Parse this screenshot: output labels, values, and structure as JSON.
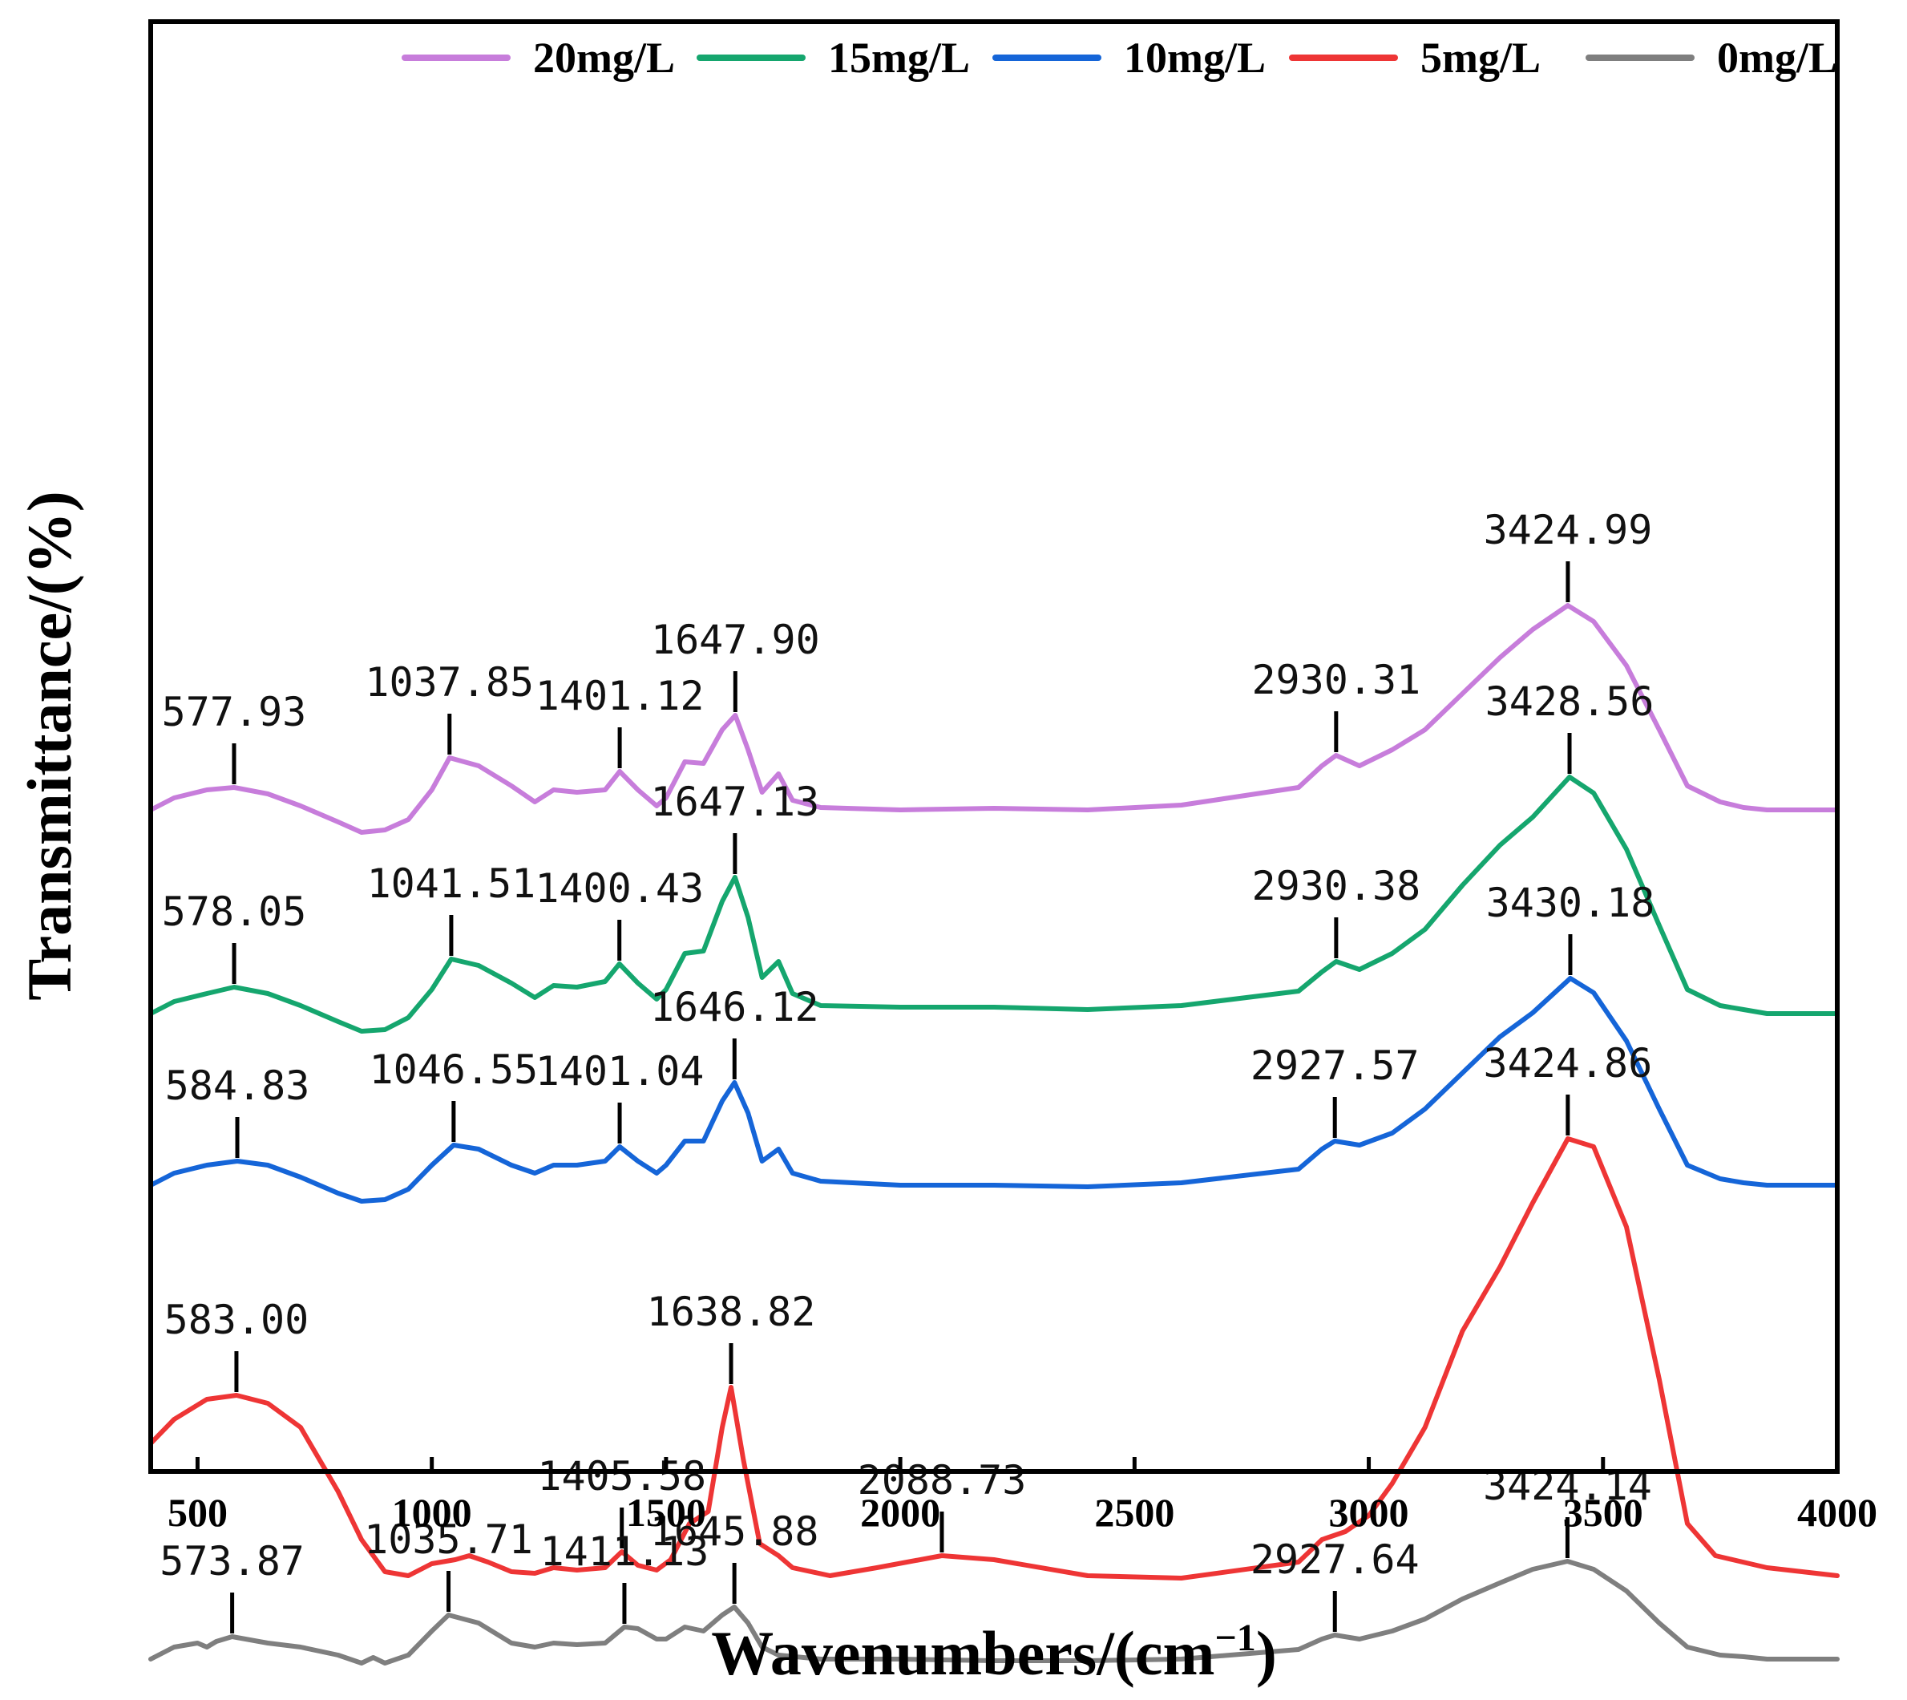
{
  "chart_data": {
    "type": "line",
    "title": "",
    "xlabel": "Wavenumbers/(cm",
    "xlabel_sup": "−1",
    "xlabel_close": ")",
    "ylabel": "Transmittance/(%)",
    "xlim": [
      400,
      4000
    ],
    "xticks": [
      "500",
      "1000",
      "1500",
      "2000",
      "2500",
      "3000",
      "3500",
      "4000"
    ],
    "legend_position": "top",
    "series": [
      {
        "name": "20mg/L",
        "color": "#C77DDB",
        "offset": 1010,
        "points": [
          [
            400,
            0
          ],
          [
            450,
            15
          ],
          [
            520,
            25
          ],
          [
            577.93,
            28
          ],
          [
            650,
            20
          ],
          [
            720,
            5
          ],
          [
            800,
            -15
          ],
          [
            850,
            -28
          ],
          [
            900,
            -25
          ],
          [
            950,
            -12
          ],
          [
            1000,
            25
          ],
          [
            1037.85,
            65
          ],
          [
            1100,
            55
          ],
          [
            1170,
            30
          ],
          [
            1220,
            10
          ],
          [
            1260,
            25
          ],
          [
            1310,
            22
          ],
          [
            1370,
            25
          ],
          [
            1401.12,
            48
          ],
          [
            1440,
            25
          ],
          [
            1480,
            5
          ],
          [
            1500,
            15
          ],
          [
            1540,
            60
          ],
          [
            1580,
            58
          ],
          [
            1620,
            100
          ],
          [
            1647.9,
            118
          ],
          [
            1675,
            75
          ],
          [
            1705,
            22
          ],
          [
            1740,
            45
          ],
          [
            1770,
            12
          ],
          [
            1830,
            3
          ],
          [
            2000,
            0
          ],
          [
            2200,
            2
          ],
          [
            2400,
            0
          ],
          [
            2600,
            6
          ],
          [
            2850,
            28
          ],
          [
            2900,
            55
          ],
          [
            2930.31,
            68
          ],
          [
            2980,
            55
          ],
          [
            3050,
            75
          ],
          [
            3120,
            100
          ],
          [
            3200,
            145
          ],
          [
            3280,
            190
          ],
          [
            3350,
            225
          ],
          [
            3424.99,
            255
          ],
          [
            3480,
            235
          ],
          [
            3550,
            180
          ],
          [
            3620,
            100
          ],
          [
            3680,
            30
          ],
          [
            3750,
            10
          ],
          [
            3800,
            3
          ],
          [
            3850,
            0
          ],
          [
            4000,
            0
          ]
        ]
      },
      {
        "name": "15mg/L",
        "color": "#15A66E",
        "offset": 1264,
        "points": [
          [
            400,
            0
          ],
          [
            450,
            15
          ],
          [
            520,
            25
          ],
          [
            578.05,
            33
          ],
          [
            650,
            25
          ],
          [
            720,
            10
          ],
          [
            800,
            -10
          ],
          [
            850,
            -22
          ],
          [
            900,
            -20
          ],
          [
            950,
            -5
          ],
          [
            1000,
            30
          ],
          [
            1041.51,
            68
          ],
          [
            1100,
            60
          ],
          [
            1170,
            38
          ],
          [
            1220,
            20
          ],
          [
            1260,
            35
          ],
          [
            1310,
            33
          ],
          [
            1370,
            40
          ],
          [
            1400.43,
            62
          ],
          [
            1440,
            38
          ],
          [
            1480,
            18
          ],
          [
            1500,
            30
          ],
          [
            1540,
            75
          ],
          [
            1580,
            78
          ],
          [
            1620,
            140
          ],
          [
            1647.13,
            170
          ],
          [
            1675,
            120
          ],
          [
            1705,
            45
          ],
          [
            1740,
            65
          ],
          [
            1770,
            25
          ],
          [
            1830,
            10
          ],
          [
            2000,
            8
          ],
          [
            2200,
            8
          ],
          [
            2400,
            5
          ],
          [
            2600,
            10
          ],
          [
            2850,
            28
          ],
          [
            2900,
            52
          ],
          [
            2930.38,
            65
          ],
          [
            2980,
            55
          ],
          [
            3050,
            75
          ],
          [
            3120,
            105
          ],
          [
            3200,
            160
          ],
          [
            3280,
            210
          ],
          [
            3350,
            245
          ],
          [
            3428.56,
            295
          ],
          [
            3480,
            275
          ],
          [
            3550,
            205
          ],
          [
            3620,
            110
          ],
          [
            3680,
            30
          ],
          [
            3750,
            10
          ],
          [
            3800,
            5
          ],
          [
            3850,
            0
          ],
          [
            4000,
            0
          ]
        ]
      },
      {
        "name": "10mg/L",
        "color": "#1565D8",
        "offset": 1478,
        "points": [
          [
            400,
            0
          ],
          [
            450,
            15
          ],
          [
            520,
            25
          ],
          [
            584.83,
            30
          ],
          [
            650,
            25
          ],
          [
            720,
            10
          ],
          [
            800,
            -10
          ],
          [
            850,
            -20
          ],
          [
            900,
            -18
          ],
          [
            950,
            -5
          ],
          [
            1000,
            25
          ],
          [
            1046.55,
            50
          ],
          [
            1100,
            45
          ],
          [
            1170,
            25
          ],
          [
            1220,
            15
          ],
          [
            1260,
            25
          ],
          [
            1310,
            25
          ],
          [
            1370,
            30
          ],
          [
            1401.04,
            48
          ],
          [
            1440,
            30
          ],
          [
            1480,
            15
          ],
          [
            1500,
            25
          ],
          [
            1540,
            55
          ],
          [
            1580,
            55
          ],
          [
            1620,
            105
          ],
          [
            1646.12,
            128
          ],
          [
            1675,
            90
          ],
          [
            1705,
            30
          ],
          [
            1740,
            45
          ],
          [
            1770,
            15
          ],
          [
            1830,
            5
          ],
          [
            2000,
            0
          ],
          [
            2200,
            0
          ],
          [
            2400,
            -2
          ],
          [
            2600,
            3
          ],
          [
            2850,
            20
          ],
          [
            2900,
            45
          ],
          [
            2927.57,
            55
          ],
          [
            2980,
            50
          ],
          [
            3050,
            65
          ],
          [
            3120,
            95
          ],
          [
            3200,
            140
          ],
          [
            3280,
            185
          ],
          [
            3350,
            215
          ],
          [
            3430.18,
            258
          ],
          [
            3480,
            240
          ],
          [
            3550,
            180
          ],
          [
            3620,
            95
          ],
          [
            3680,
            25
          ],
          [
            3750,
            8
          ],
          [
            3800,
            3
          ],
          [
            3850,
            0
          ],
          [
            4000,
            0
          ]
        ]
      },
      {
        "name": "5mg/L",
        "color": "#EE3535",
        "offset": 1840,
        "points": [
          [
            400,
            40
          ],
          [
            450,
            70
          ],
          [
            520,
            95
          ],
          [
            583.0,
            100
          ],
          [
            650,
            90
          ],
          [
            720,
            60
          ],
          [
            800,
            -20
          ],
          [
            850,
            -80
          ],
          [
            900,
            -120
          ],
          [
            950,
            -125
          ],
          [
            1000,
            -110
          ],
          [
            1050,
            -105
          ],
          [
            1080,
            -100
          ],
          [
            1120,
            -108
          ],
          [
            1170,
            -120
          ],
          [
            1220,
            -122
          ],
          [
            1260,
            -115
          ],
          [
            1310,
            -118
          ],
          [
            1370,
            -115
          ],
          [
            1405.58,
            -95
          ],
          [
            1440,
            -112
          ],
          [
            1480,
            -118
          ],
          [
            1510,
            -105
          ],
          [
            1550,
            -60
          ],
          [
            1590,
            -45
          ],
          [
            1620,
            60
          ],
          [
            1638.82,
            110
          ],
          [
            1665,
            20
          ],
          [
            1700,
            -85
          ],
          [
            1740,
            -100
          ],
          [
            1770,
            -115
          ],
          [
            1850,
            -125
          ],
          [
            1950,
            -115
          ],
          [
            2088.73,
            -100
          ],
          [
            2200,
            -105
          ],
          [
            2400,
            -125
          ],
          [
            2600,
            -128
          ],
          [
            2850,
            -108
          ],
          [
            2900,
            -80
          ],
          [
            2950,
            -70
          ],
          [
            3000,
            -50
          ],
          [
            3050,
            -10
          ],
          [
            3120,
            60
          ],
          [
            3200,
            180
          ],
          [
            3280,
            260
          ],
          [
            3350,
            340
          ],
          [
            3424.86,
            420
          ],
          [
            3480,
            410
          ],
          [
            3550,
            310
          ],
          [
            3620,
            120
          ],
          [
            3680,
            -60
          ],
          [
            3740,
            -100
          ],
          [
            3850,
            -115
          ],
          [
            4000,
            -125
          ]
        ]
      },
      {
        "name": "0mg/L",
        "color": "#7F7F7F",
        "offset": 2069,
        "points": [
          [
            400,
            0
          ],
          [
            450,
            15
          ],
          [
            500,
            20
          ],
          [
            520,
            15
          ],
          [
            540,
            22
          ],
          [
            573.87,
            28
          ],
          [
            650,
            20
          ],
          [
            720,
            15
          ],
          [
            800,
            5
          ],
          [
            850,
            -5
          ],
          [
            875,
            2
          ],
          [
            900,
            -5
          ],
          [
            950,
            5
          ],
          [
            1000,
            35
          ],
          [
            1035.71,
            55
          ],
          [
            1100,
            45
          ],
          [
            1170,
            20
          ],
          [
            1220,
            15
          ],
          [
            1260,
            20
          ],
          [
            1310,
            18
          ],
          [
            1370,
            20
          ],
          [
            1411.13,
            40
          ],
          [
            1440,
            38
          ],
          [
            1480,
            25
          ],
          [
            1500,
            25
          ],
          [
            1540,
            40
          ],
          [
            1580,
            35
          ],
          [
            1620,
            55
          ],
          [
            1645.88,
            65
          ],
          [
            1675,
            45
          ],
          [
            1705,
            15
          ],
          [
            1740,
            5
          ],
          [
            1830,
            0
          ],
          [
            2000,
            0
          ],
          [
            2200,
            -2
          ],
          [
            2400,
            -2
          ],
          [
            2600,
            0
          ],
          [
            2850,
            12
          ],
          [
            2900,
            25
          ],
          [
            2927.64,
            30
          ],
          [
            2980,
            25
          ],
          [
            3050,
            35
          ],
          [
            3120,
            50
          ],
          [
            3200,
            75
          ],
          [
            3280,
            95
          ],
          [
            3350,
            112
          ],
          [
            3424.14,
            122
          ],
          [
            3480,
            112
          ],
          [
            3550,
            85
          ],
          [
            3620,
            45
          ],
          [
            3680,
            15
          ],
          [
            3750,
            5
          ],
          [
            3800,
            3
          ],
          [
            3850,
            0
          ],
          [
            4000,
            0
          ]
        ]
      }
    ],
    "annotations": [
      {
        "label": "577.93",
        "x": 577.93,
        "series": 0
      },
      {
        "label": "1037.85",
        "x": 1037.85,
        "series": 0
      },
      {
        "label": "1401.12",
        "x": 1401.12,
        "series": 0
      },
      {
        "label": "1647.90",
        "x": 1647.9,
        "series": 0
      },
      {
        "label": "2930.31",
        "x": 2930.31,
        "series": 0
      },
      {
        "label": "3424.99",
        "x": 3424.99,
        "series": 0
      },
      {
        "label": "578.05",
        "x": 578.05,
        "series": 1
      },
      {
        "label": "1041.51",
        "x": 1041.51,
        "series": 1
      },
      {
        "label": "1400.43",
        "x": 1400.43,
        "series": 1
      },
      {
        "label": "1647.13",
        "x": 1647.13,
        "series": 1
      },
      {
        "label": "2930.38",
        "x": 2930.38,
        "series": 1
      },
      {
        "label": "3428.56",
        "x": 3428.56,
        "series": 1
      },
      {
        "label": "584.83",
        "x": 584.83,
        "series": 2
      },
      {
        "label": "1046.55",
        "x": 1046.55,
        "series": 2
      },
      {
        "label": "1401.04",
        "x": 1401.04,
        "series": 2
      },
      {
        "label": "1646.12",
        "x": 1646.12,
        "series": 2
      },
      {
        "label": "2927.57",
        "x": 2927.57,
        "series": 2
      },
      {
        "label": "3430.18",
        "x": 3430.18,
        "series": 2
      },
      {
        "label": "583.00",
        "x": 583.0,
        "series": 3
      },
      {
        "label": "1405.58",
        "x": 1405.58,
        "series": 3
      },
      {
        "label": "1638.82",
        "x": 1638.82,
        "series": 3
      },
      {
        "label": "2088.73",
        "x": 2088.73,
        "series": 3
      },
      {
        "label": "3424.86",
        "x": 3424.86,
        "series": 3
      },
      {
        "label": "573.87",
        "x": 573.87,
        "series": 4
      },
      {
        "label": "1035.71",
        "x": 1035.71,
        "series": 4
      },
      {
        "label": "1411.13",
        "x": 1411.13,
        "series": 4
      },
      {
        "label": "1645.88",
        "x": 1645.88,
        "series": 4
      },
      {
        "label": "2927.64",
        "x": 2927.64,
        "series": 4
      },
      {
        "label": "3424.14",
        "x": 3424.14,
        "series": 4
      }
    ]
  }
}
